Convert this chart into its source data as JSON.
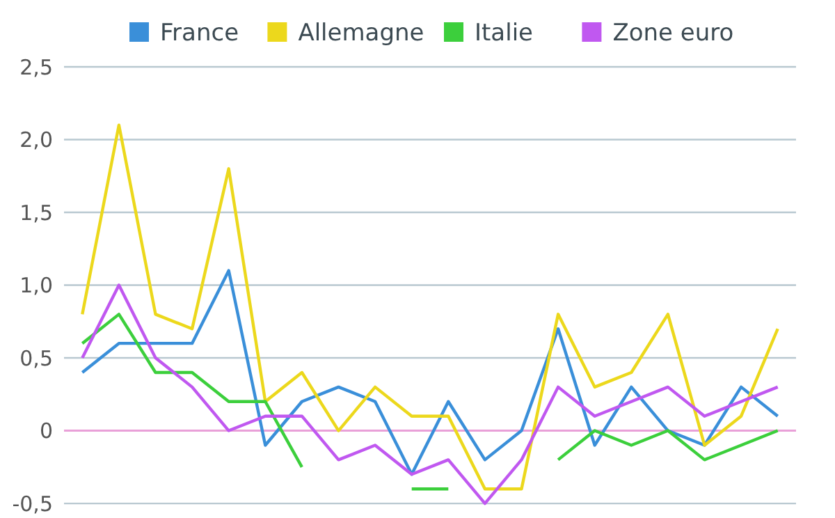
{
  "chart_data": {
    "type": "line",
    "categories": [
      null,
      null,
      null,
      null,
      null,
      null,
      null,
      null,
      null,
      null,
      null,
      null,
      null,
      null,
      null,
      null,
      null,
      null,
      null,
      null
    ],
    "series": [
      {
        "name": "France",
        "color": "#3a8fd9",
        "values": [
          0.4,
          0.6,
          0.6,
          0.6,
          1.1,
          -0.1,
          0.2,
          0.3,
          0.2,
          -0.3,
          0.2,
          -0.2,
          0,
          0.7,
          -0.1,
          0.3,
          0,
          -0.1,
          0.3,
          0.1
        ]
      },
      {
        "name": "Allemagne",
        "color": "#ecd81c",
        "values": [
          0.8,
          2.1,
          0.8,
          0.7,
          1.8,
          0.2,
          0.4,
          0,
          0.3,
          0.1,
          0.1,
          -0.4,
          -0.4,
          0.8,
          0.3,
          0.4,
          0.8,
          -0.1,
          0.1,
          0.7
        ]
      },
      {
        "name": "Italie",
        "color": "#3ccf3c",
        "values": [
          0.6,
          0.8,
          0.4,
          0.4,
          0.2,
          0.2,
          -0.25,
          null,
          null,
          -0.4,
          -0.4,
          null,
          null,
          -0.2,
          0,
          -0.1,
          0,
          -0.2,
          -0.1,
          0
        ]
      },
      {
        "name": "Zone euro",
        "color": "#c058f0",
        "values": [
          0.5,
          1.0,
          0.5,
          0.3,
          0,
          0.1,
          0.1,
          -0.2,
          -0.1,
          -0.3,
          -0.2,
          -0.5,
          -0.2,
          0.3,
          0.1,
          0.2,
          0.3,
          0.1,
          0.2,
          0.3
        ]
      }
    ],
    "ylim": [
      -0.6,
      2.5
    ],
    "yticks": [
      {
        "value": -0.5,
        "label": "-0,5"
      },
      {
        "value": 0,
        "label": "0"
      },
      {
        "value": 0.5,
        "label": "0,5"
      },
      {
        "value": 1,
        "label": "1,0"
      },
      {
        "value": 1.5,
        "label": "1,5"
      },
      {
        "value": 2,
        "label": "2,0"
      },
      {
        "value": 2.5,
        "label": "2,5"
      }
    ],
    "grid": "y",
    "legend": "top",
    "tick_labels": "y",
    "marker": "none",
    "line_style": "solid",
    "ref_lines": [
      {
        "axis": "y",
        "value": 0,
        "color": "#e9a0d8"
      }
    ]
  }
}
